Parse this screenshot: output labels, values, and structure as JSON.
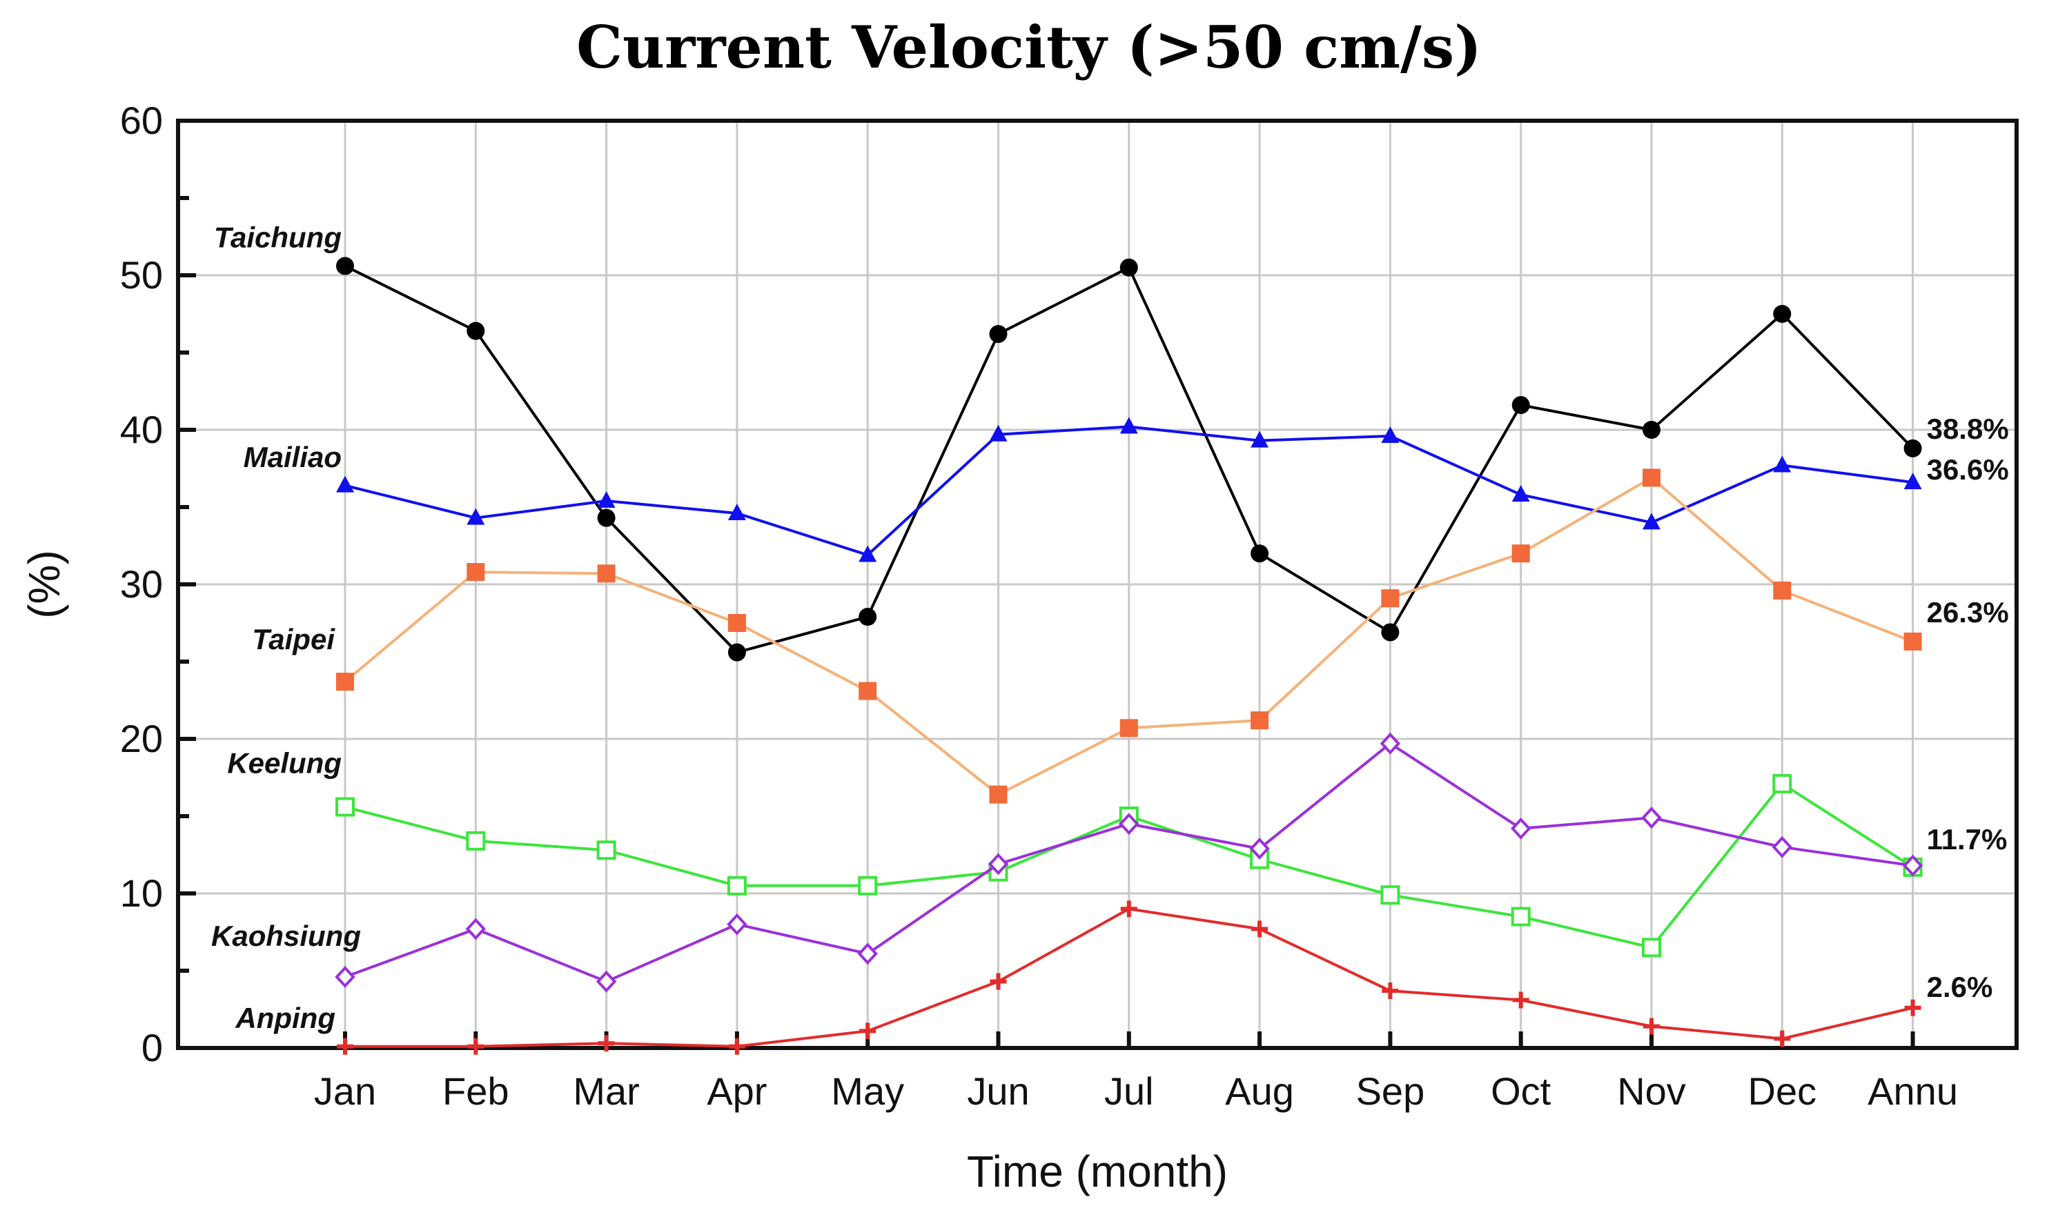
{
  "chart_data": {
    "type": "line",
    "title": "Current Velocity (>50 cm/s)",
    "xlabel": "Time (month)",
    "ylabel": "(%)",
    "categories": [
      "Jan",
      "Feb",
      "Mar",
      "Apr",
      "May",
      "Jun",
      "Jul",
      "Aug",
      "Sep",
      "Oct",
      "Nov",
      "Dec",
      "Annu"
    ],
    "ylim": [
      0,
      60
    ],
    "yticks": [
      0,
      10,
      20,
      30,
      40,
      50,
      60
    ],
    "grid": true,
    "series": [
      {
        "name": "Taichung",
        "color": "#000000",
        "marker": "filled-circle",
        "values": [
          50.6,
          46.4,
          34.3,
          25.6,
          27.9,
          46.2,
          50.5,
          32.0,
          26.9,
          41.6,
          40.0,
          47.5,
          38.8
        ],
        "end_label": "38.8%"
      },
      {
        "name": "Mailiao",
        "color": "#1010ee",
        "marker": "filled-triangle",
        "values": [
          36.4,
          34.3,
          35.4,
          34.6,
          31.9,
          39.7,
          40.2,
          39.3,
          39.6,
          35.8,
          34.0,
          37.7,
          36.6
        ],
        "end_label": "36.6%"
      },
      {
        "name": "Taipei",
        "color": "#f4b27a",
        "marker_color": "#f26a3a",
        "marker": "filled-square",
        "values": [
          23.7,
          30.8,
          30.7,
          27.5,
          23.1,
          16.4,
          20.7,
          21.2,
          29.1,
          32.0,
          36.9,
          29.6,
          26.3
        ],
        "end_label": "26.3%"
      },
      {
        "name": "Keelung",
        "color": "#3ce63c",
        "marker": "open-square",
        "values": [
          15.6,
          13.4,
          12.8,
          10.5,
          10.5,
          11.4,
          15.0,
          12.2,
          9.9,
          8.5,
          6.5,
          17.1,
          11.7
        ],
        "end_label": "11.7%"
      },
      {
        "name": "Kaohsiung",
        "color": "#9b30d9",
        "marker": "open-diamond",
        "values": [
          4.6,
          7.7,
          4.3,
          8.0,
          6.1,
          11.9,
          14.5,
          12.9,
          19.7,
          14.2,
          14.9,
          13.0,
          11.8
        ],
        "end_label": ""
      },
      {
        "name": "Anping",
        "color": "#e22b2b",
        "marker": "plus",
        "values": [
          0.1,
          0.1,
          0.3,
          0.1,
          1.1,
          4.3,
          9.0,
          7.7,
          3.7,
          3.1,
          1.4,
          0.6,
          2.6
        ],
        "end_label": "2.6%"
      }
    ]
  }
}
